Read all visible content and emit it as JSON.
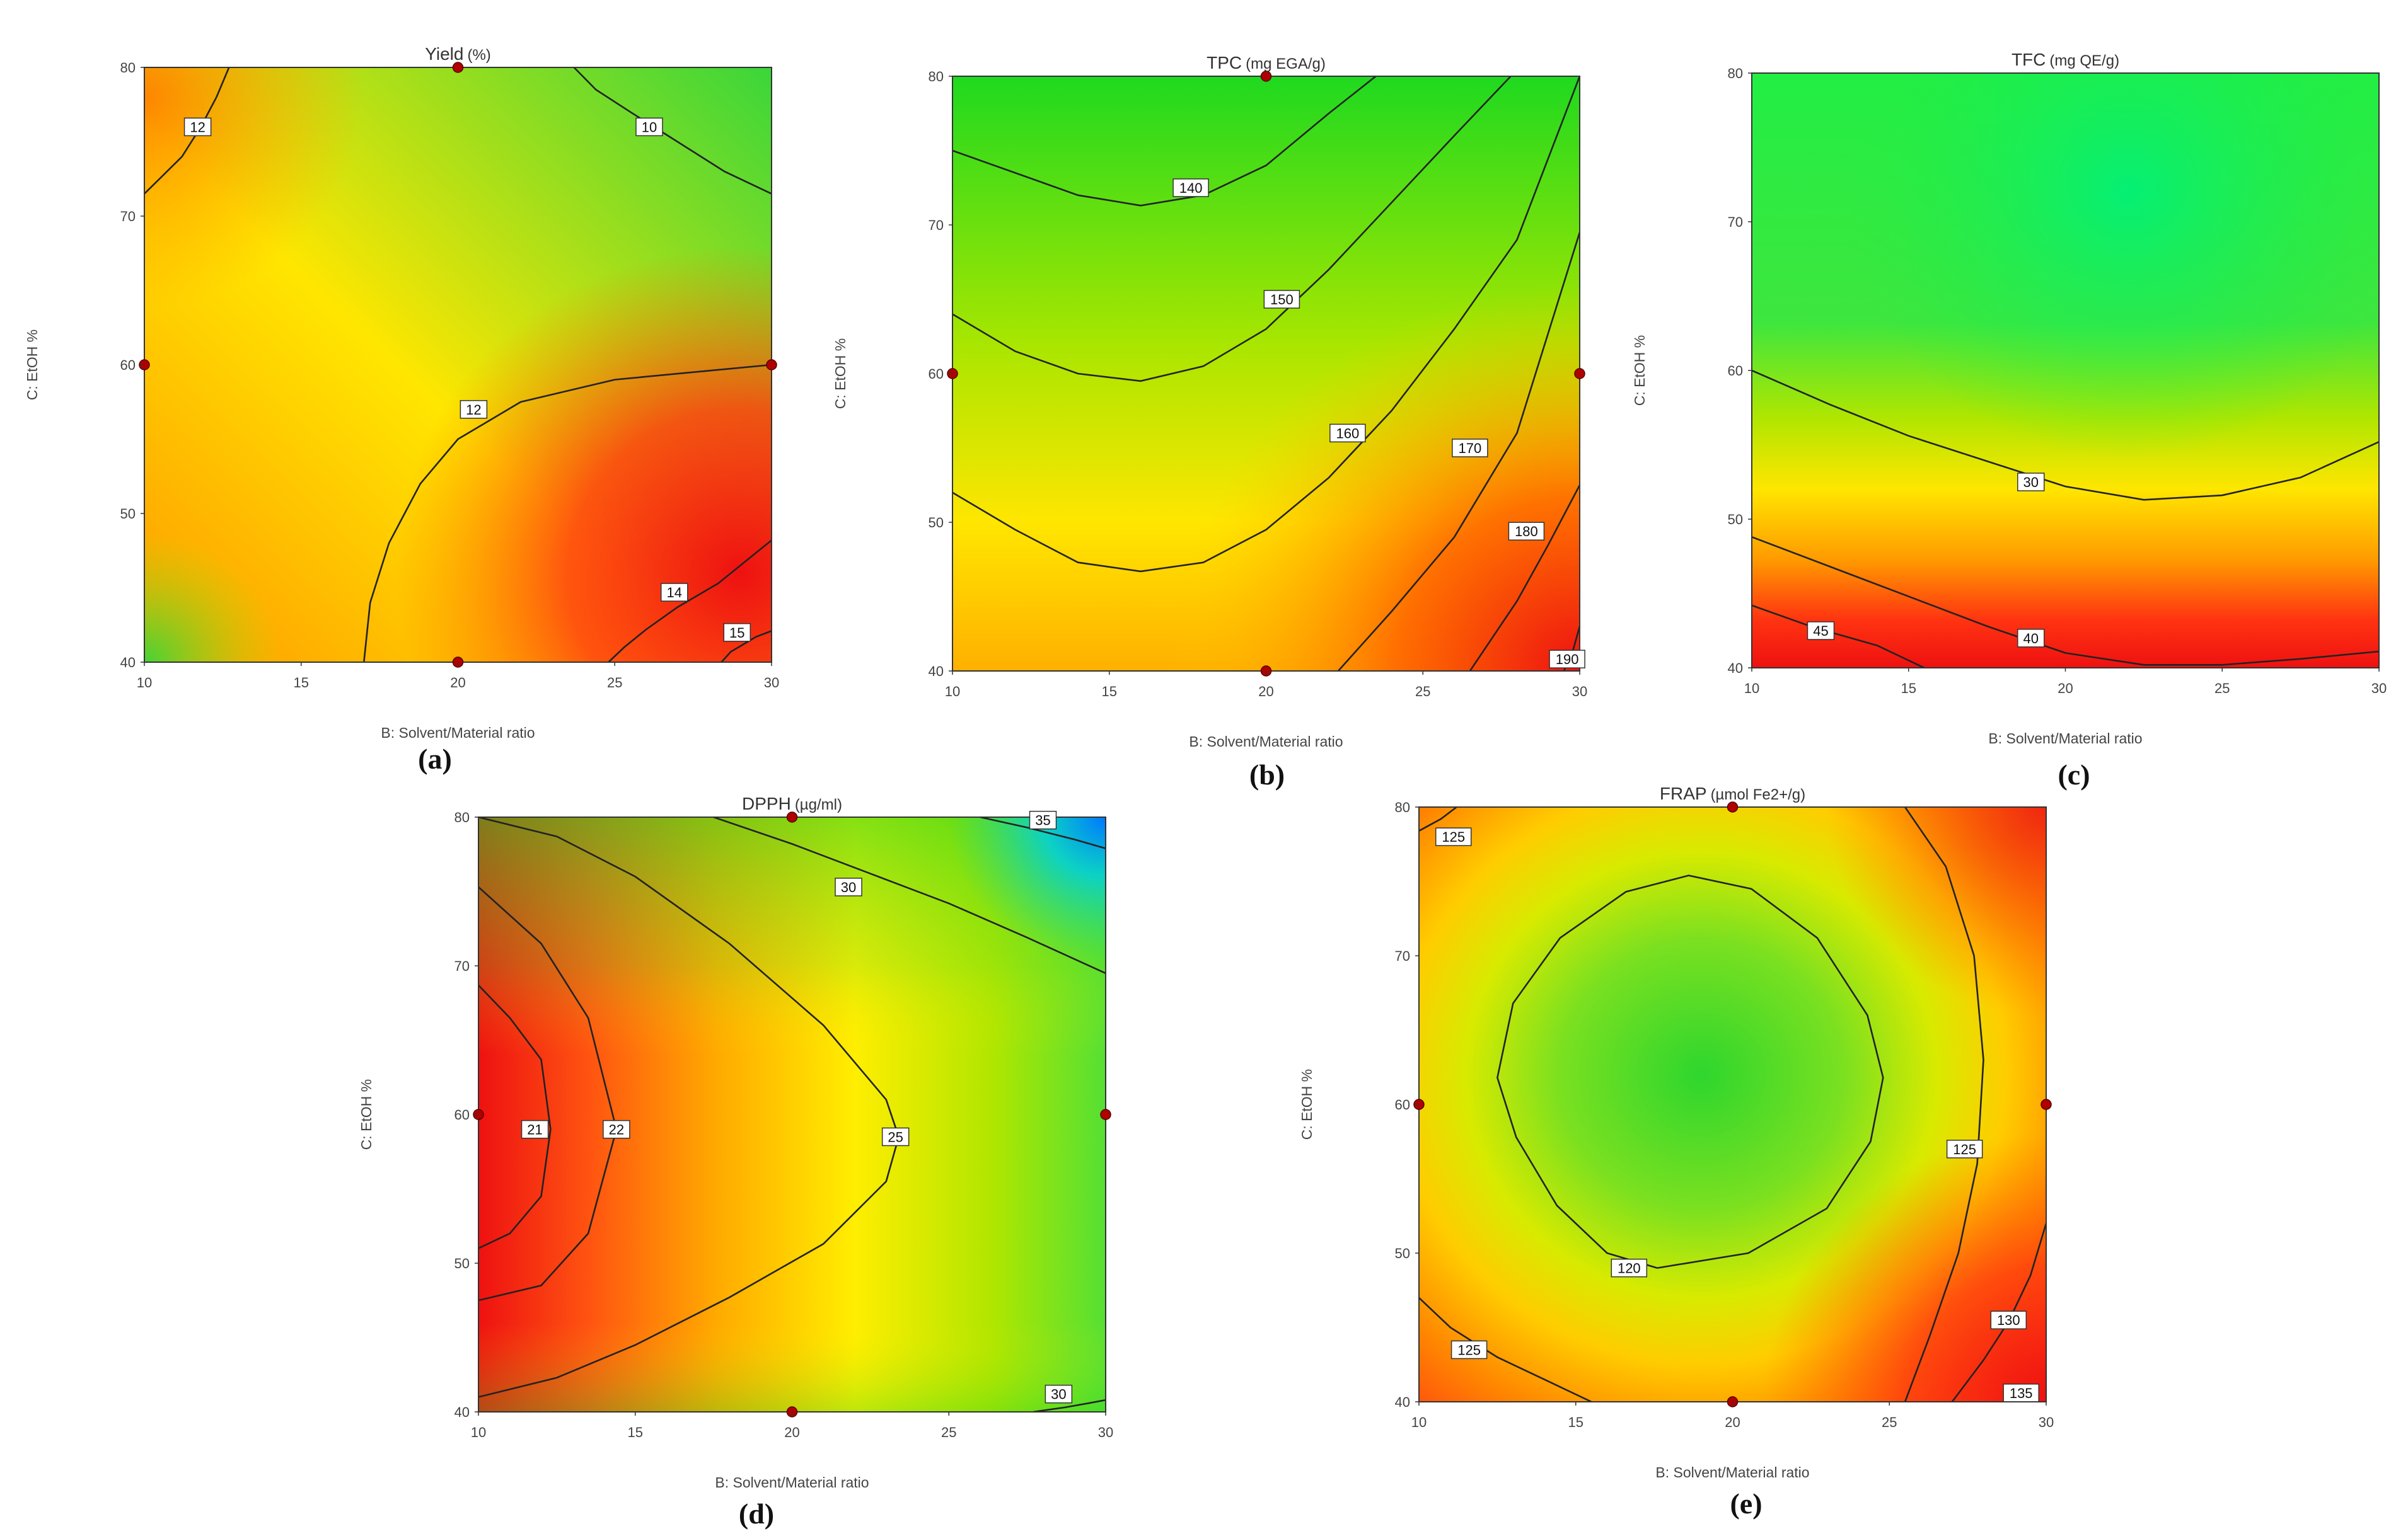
{
  "chart_data": [
    {
      "type": "heatmap",
      "panel_label": "(a)",
      "title": "Yield",
      "title_unit": "(%)",
      "xlabel": "B: Solvent/Material ratio",
      "ylabel": "C: EtOH %",
      "xlim": [
        10,
        30
      ],
      "ylim": [
        40,
        80
      ],
      "x_ticks": [
        "10",
        "15",
        "20",
        "25",
        "30"
      ],
      "y_ticks": [
        "40",
        "50",
        "60",
        "70",
        "80"
      ],
      "design_points": [
        [
          20,
          80
        ],
        [
          10,
          60
        ],
        [
          30,
          60
        ],
        [
          20,
          40
        ]
      ],
      "contour_labels": [
        {
          "text": "12",
          "x": 11.7,
          "y": 76
        },
        {
          "text": "10",
          "x": 26.1,
          "y": 76
        },
        {
          "text": "12",
          "x": 20.5,
          "y": 57
        },
        {
          "text": "14",
          "x": 26.9,
          "y": 44.7
        },
        {
          "text": "15",
          "x": 28.9,
          "y": 42
        }
      ],
      "contour_lines": [
        [
          [
            12.7,
            80
          ],
          [
            12.3,
            78
          ],
          [
            11.8,
            76
          ],
          [
            11.2,
            74
          ],
          [
            10,
            71.5
          ]
        ],
        [
          [
            23.7,
            80
          ],
          [
            24.4,
            78.5
          ],
          [
            25.5,
            77
          ],
          [
            27,
            75
          ],
          [
            28.5,
            73
          ],
          [
            30,
            71.5
          ]
        ],
        [
          [
            17,
            40
          ],
          [
            17.2,
            44
          ],
          [
            17.8,
            48
          ],
          [
            18.8,
            52
          ],
          [
            20,
            55
          ],
          [
            22,
            57.5
          ],
          [
            25,
            59
          ],
          [
            30,
            60
          ]
        ],
        [
          [
            24.8,
            40
          ],
          [
            25.3,
            41
          ],
          [
            26,
            42.2
          ],
          [
            27,
            43.7
          ],
          [
            28.3,
            45.3
          ],
          [
            30,
            48.2
          ]
        ],
        [
          [
            28.4,
            40
          ],
          [
            28.7,
            40.7
          ],
          [
            29.1,
            41.2
          ],
          [
            29.5,
            41.7
          ],
          [
            30,
            42.1
          ]
        ]
      ],
      "colormap_stops": [
        [
          0,
          "#2ed62e"
        ],
        [
          0.3,
          "#a8e600"
        ],
        [
          0.55,
          "#ffee00"
        ],
        [
          0.75,
          "#ff9900"
        ],
        [
          1,
          "#ee1111"
        ]
      ]
    },
    {
      "type": "heatmap",
      "panel_label": "(b)",
      "title": "TPC",
      "title_unit": "(mg EGA/g)",
      "xlabel": "B: Solvent/Material ratio",
      "ylabel": "C: EtOH %",
      "xlim": [
        10,
        30
      ],
      "ylim": [
        40,
        80
      ],
      "x_ticks": [
        "10",
        "15",
        "20",
        "25",
        "30"
      ],
      "y_ticks": [
        "40",
        "50",
        "60",
        "70",
        "80"
      ],
      "design_points": [
        [
          20,
          80
        ],
        [
          10,
          60
        ],
        [
          30,
          60
        ],
        [
          20,
          40
        ]
      ],
      "contour_labels": [
        {
          "text": "140",
          "x": 17.6,
          "y": 72.5
        },
        {
          "text": "150",
          "x": 20.5,
          "y": 65
        },
        {
          "text": "160",
          "x": 22.6,
          "y": 56
        },
        {
          "text": "170",
          "x": 26.5,
          "y": 55
        },
        {
          "text": "180",
          "x": 28.3,
          "y": 49.4
        },
        {
          "text": "190",
          "x": 29.6,
          "y": 40.8
        }
      ],
      "contour_lines": [
        [
          [
            10,
            75
          ],
          [
            12,
            73.5
          ],
          [
            14,
            72
          ],
          [
            16,
            71.3
          ],
          [
            18,
            72
          ],
          [
            20,
            74
          ],
          [
            22,
            77.5
          ],
          [
            23.5,
            80
          ]
        ],
        [
          [
            10,
            64
          ],
          [
            12,
            61.5
          ],
          [
            14,
            60
          ],
          [
            16,
            59.5
          ],
          [
            18,
            60.5
          ],
          [
            20,
            63
          ],
          [
            22,
            67
          ],
          [
            24,
            71.5
          ],
          [
            26,
            76
          ],
          [
            27.8,
            80
          ]
        ],
        [
          [
            10,
            52
          ],
          [
            12,
            49.5
          ],
          [
            14,
            47.3
          ],
          [
            16,
            46.7
          ],
          [
            18,
            47.3
          ],
          [
            20,
            49.5
          ],
          [
            22,
            53
          ],
          [
            24,
            57.5
          ],
          [
            26,
            63
          ],
          [
            28,
            69
          ],
          [
            30,
            80
          ]
        ],
        [
          [
            22.3,
            40
          ],
          [
            24,
            44
          ],
          [
            26,
            49
          ],
          [
            28,
            56
          ],
          [
            30,
            69.5
          ]
        ],
        [
          [
            26.5,
            40
          ],
          [
            28,
            44.7
          ],
          [
            29,
            48.5
          ],
          [
            30,
            52.5
          ]
        ],
        [
          [
            29.5,
            40
          ],
          [
            29.8,
            41.5
          ],
          [
            30,
            43
          ]
        ]
      ],
      "colormap_stops": [
        [
          0,
          "#1fd91f"
        ],
        [
          0.3,
          "#a8e600"
        ],
        [
          0.55,
          "#ffee00"
        ],
        [
          0.75,
          "#ff9900"
        ],
        [
          1,
          "#ee1111"
        ]
      ]
    },
    {
      "type": "heatmap",
      "panel_label": "(c)",
      "title": "TFC",
      "title_unit": "(mg QE/g)",
      "xlabel": "B: Solvent/Material ratio",
      "ylabel": "C: EtOH %",
      "xlim": [
        10,
        30
      ],
      "ylim": [
        40,
        80
      ],
      "x_ticks": [
        "10",
        "15",
        "20",
        "25",
        "30"
      ],
      "y_ticks": [
        "40",
        "50",
        "60",
        "70",
        "80"
      ],
      "design_points": [],
      "contour_labels": [
        {
          "text": "30",
          "x": 18.9,
          "y": 52.5
        },
        {
          "text": "40",
          "x": 18.9,
          "y": 42
        },
        {
          "text": "45",
          "x": 12.2,
          "y": 42.5
        }
      ],
      "contour_lines": [
        [
          [
            10,
            60
          ],
          [
            12.5,
            57.7
          ],
          [
            15,
            55.6
          ],
          [
            17.5,
            53.9
          ],
          [
            20,
            52.2
          ],
          [
            22.5,
            51.3
          ],
          [
            25,
            51.6
          ],
          [
            27.5,
            52.8
          ],
          [
            30,
            55.2
          ]
        ],
        [
          [
            10,
            48.8
          ],
          [
            12.5,
            46.8
          ],
          [
            15,
            44.8
          ],
          [
            17.5,
            42.8
          ],
          [
            20,
            41
          ],
          [
            22.5,
            40.2
          ],
          [
            25,
            40.2
          ],
          [
            27.5,
            40.6
          ],
          [
            30,
            41.1
          ]
        ],
        [
          [
            10,
            44.2
          ],
          [
            12,
            42.7
          ],
          [
            14,
            41.5
          ],
          [
            15.5,
            40
          ]
        ]
      ],
      "colormap_stops": [
        [
          0,
          "#00f070"
        ],
        [
          0.3,
          "#3ee63e"
        ],
        [
          0.5,
          "#b0e600"
        ],
        [
          0.68,
          "#ffee00"
        ],
        [
          0.82,
          "#ff9900"
        ],
        [
          1,
          "#ee1111"
        ]
      ]
    },
    {
      "type": "heatmap",
      "panel_label": "(d)",
      "title": "DPPH",
      "title_unit": "(µg/ml)",
      "xlabel": "B: Solvent/Material ratio",
      "ylabel": "C: EtOH %",
      "xlim": [
        10,
        30
      ],
      "ylim": [
        40,
        80
      ],
      "x_ticks": [
        "10",
        "15",
        "20",
        "25",
        "30"
      ],
      "y_ticks": [
        "40",
        "50",
        "60",
        "70",
        "80"
      ],
      "design_points": [
        [
          20,
          80
        ],
        [
          10,
          60
        ],
        [
          30,
          60
        ],
        [
          20,
          40
        ]
      ],
      "contour_labels": [
        {
          "text": "35",
          "x": 28,
          "y": 79.8
        },
        {
          "text": "30",
          "x": 21.8,
          "y": 75.3
        },
        {
          "text": "21",
          "x": 11.8,
          "y": 59
        },
        {
          "text": "22",
          "x": 14.4,
          "y": 59
        },
        {
          "text": "25",
          "x": 23.3,
          "y": 58.5
        },
        {
          "text": "30",
          "x": 28.5,
          "y": 41.2
        }
      ],
      "contour_lines": [
        [
          [
            26,
            80
          ],
          [
            27.5,
            79.3
          ],
          [
            29,
            78.5
          ],
          [
            30,
            77.9
          ]
        ],
        [
          [
            17.5,
            80
          ],
          [
            20,
            78.2
          ],
          [
            22.5,
            76.2
          ],
          [
            25,
            74.2
          ],
          [
            27.5,
            71.9
          ],
          [
            30,
            69.5
          ]
        ],
        [
          [
            10,
            68.7
          ],
          [
            11,
            66.5
          ],
          [
            12,
            63.7
          ],
          [
            12.3,
            59
          ],
          [
            12,
            54.5
          ],
          [
            11,
            52
          ],
          [
            10,
            51
          ]
        ],
        [
          [
            10,
            75.3
          ],
          [
            12,
            71.5
          ],
          [
            13.5,
            66.5
          ],
          [
            14.4,
            59
          ],
          [
            13.5,
            52
          ],
          [
            12,
            48.5
          ],
          [
            10,
            47.5
          ]
        ],
        [
          [
            10,
            80
          ],
          [
            12.5,
            78.7
          ],
          [
            15,
            76
          ],
          [
            18,
            71.5
          ],
          [
            21,
            66
          ],
          [
            23,
            61
          ],
          [
            23.4,
            58.5
          ],
          [
            23,
            55.5
          ],
          [
            21,
            51.3
          ],
          [
            18,
            47.7
          ],
          [
            15,
            44.5
          ],
          [
            12.5,
            42.3
          ],
          [
            10,
            41
          ]
        ],
        [
          [
            27.7,
            40
          ],
          [
            28.7,
            40.3
          ],
          [
            29.5,
            40.6
          ],
          [
            30,
            40.8
          ]
        ]
      ],
      "colormap_stops": [
        [
          0,
          "#0077ff"
        ],
        [
          0.12,
          "#00e0e6"
        ],
        [
          0.25,
          "#2ed62e"
        ],
        [
          0.48,
          "#b0e600"
        ],
        [
          0.65,
          "#ffee00"
        ],
        [
          0.82,
          "#ff9900"
        ],
        [
          1,
          "#ee1111"
        ]
      ]
    },
    {
      "type": "heatmap",
      "panel_label": "(e)",
      "title": "FRAP",
      "title_unit": "(µmol Fe2+/g)",
      "xlabel": "B: Solvent/Material ratio",
      "ylabel": "C: EtOH %",
      "xlim": [
        10,
        30
      ],
      "ylim": [
        40,
        80
      ],
      "x_ticks": [
        "10",
        "15",
        "20",
        "25",
        "30"
      ],
      "y_ticks": [
        "40",
        "50",
        "60",
        "70",
        "80"
      ],
      "design_points": [
        [
          20,
          80
        ],
        [
          10,
          60
        ],
        [
          30,
          60
        ],
        [
          20,
          40
        ]
      ],
      "contour_labels": [
        {
          "text": "125",
          "x": 11.1,
          "y": 78
        },
        {
          "text": "125",
          "x": 27.4,
          "y": 57
        },
        {
          "text": "120",
          "x": 16.7,
          "y": 49
        },
        {
          "text": "125",
          "x": 11.6,
          "y": 43.5
        },
        {
          "text": "130",
          "x": 28.8,
          "y": 45.5
        },
        {
          "text": "135",
          "x": 29.2,
          "y": 40.6
        }
      ],
      "contour_lines": [
        [
          [
            17.6,
            49
          ],
          [
            16,
            50
          ],
          [
            14.4,
            53.2
          ],
          [
            13.1,
            57.8
          ],
          [
            12.5,
            61.8
          ],
          [
            13,
            66.8
          ],
          [
            14.5,
            71.2
          ],
          [
            16.6,
            74.3
          ],
          [
            18.6,
            75.4
          ],
          [
            20.6,
            74.5
          ],
          [
            22.7,
            71.2
          ],
          [
            24.3,
            66
          ],
          [
            24.8,
            61.8
          ],
          [
            24.4,
            57.5
          ],
          [
            23,
            53
          ],
          [
            20.5,
            50
          ],
          [
            17.6,
            49
          ]
        ],
        [
          [
            10,
            78.4
          ],
          [
            10.7,
            79.2
          ],
          [
            11.2,
            80
          ]
        ],
        [
          [
            25.5,
            80
          ],
          [
            26.8,
            76
          ],
          [
            27.7,
            70
          ],
          [
            28,
            63
          ],
          [
            27.8,
            56
          ],
          [
            27.2,
            50
          ],
          [
            26.3,
            44.5
          ],
          [
            25.5,
            40
          ]
        ],
        [
          [
            10,
            47
          ],
          [
            11,
            45
          ],
          [
            12.5,
            43
          ],
          [
            14,
            41.5
          ],
          [
            15.5,
            40
          ]
        ],
        [
          [
            30,
            52
          ],
          [
            29.5,
            48.5
          ],
          [
            28.8,
            45.4
          ],
          [
            28,
            42.8
          ],
          [
            27,
            40
          ]
        ]
      ],
      "colormap_stops": [
        [
          0,
          "#2ed62e"
        ],
        [
          0.3,
          "#a8e600"
        ],
        [
          0.55,
          "#ffee00"
        ],
        [
          0.75,
          "#ff9900"
        ],
        [
          1,
          "#ee1111"
        ]
      ]
    }
  ]
}
